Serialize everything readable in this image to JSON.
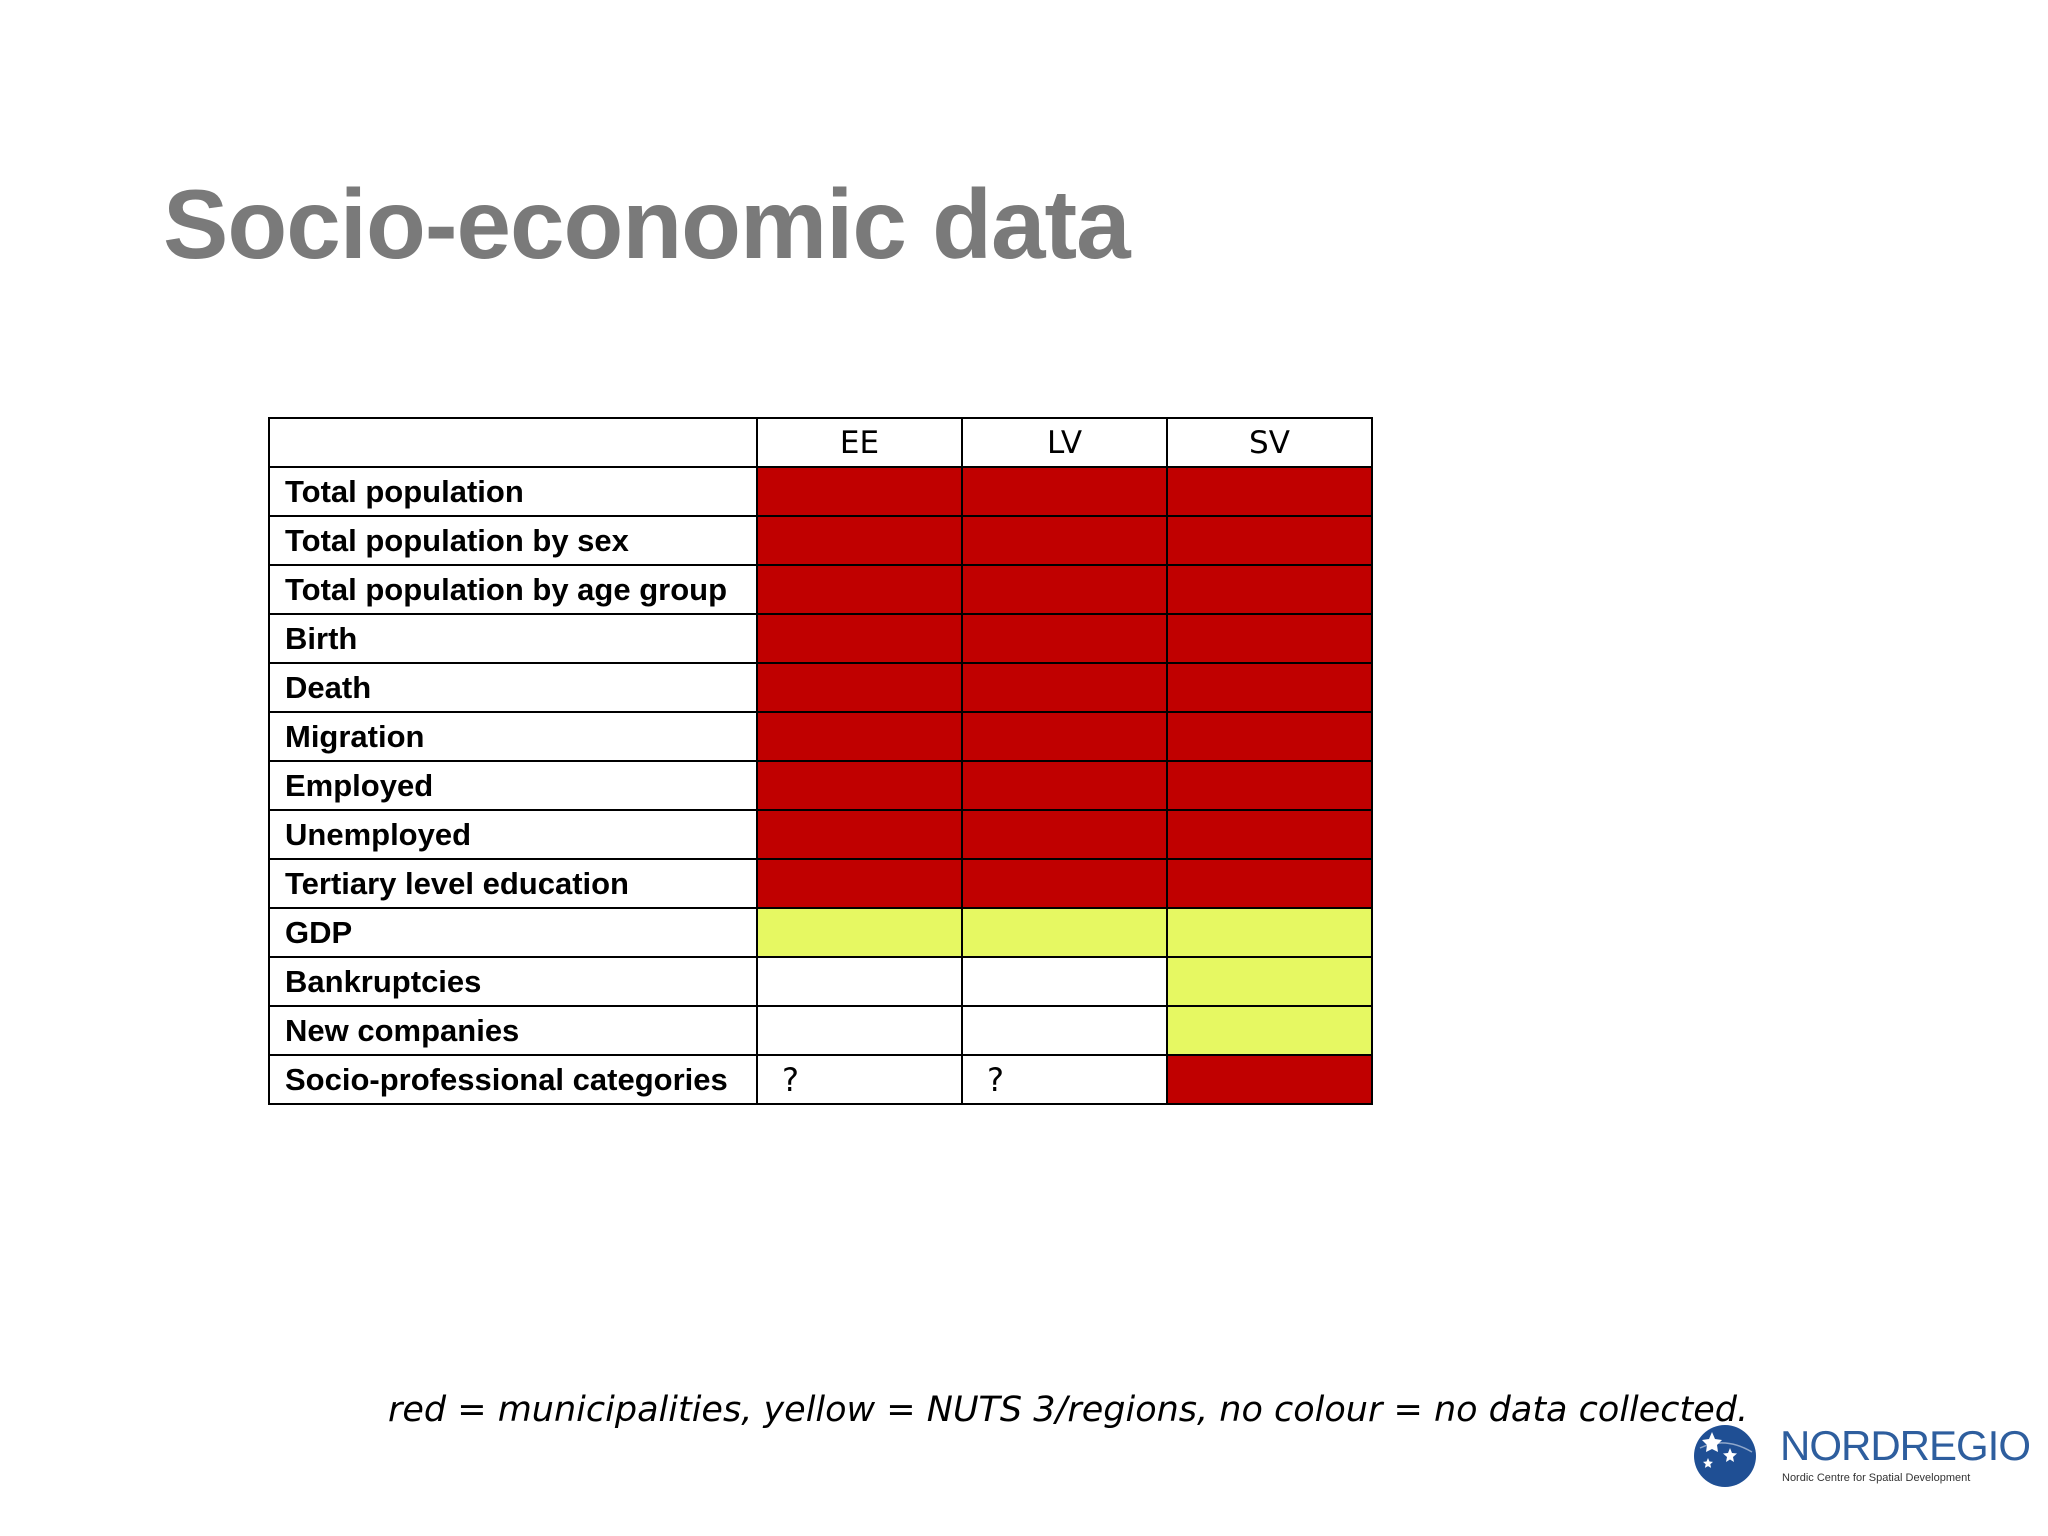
{
  "title": "Socio-economic data",
  "colors": {
    "red": "#c00000",
    "yellow": "#e6f862",
    "none": "#ffffff"
  },
  "table": {
    "columns": [
      "EE",
      "LV",
      "SV"
    ],
    "rows": [
      {
        "label": "Total population",
        "cells": [
          {
            "fill": "red",
            "text": ""
          },
          {
            "fill": "red",
            "text": ""
          },
          {
            "fill": "red",
            "text": ""
          }
        ]
      },
      {
        "label": "Total population by sex",
        "cells": [
          {
            "fill": "red",
            "text": ""
          },
          {
            "fill": "red",
            "text": ""
          },
          {
            "fill": "red",
            "text": ""
          }
        ]
      },
      {
        "label": "Total population by age group",
        "cells": [
          {
            "fill": "red",
            "text": ""
          },
          {
            "fill": "red",
            "text": ""
          },
          {
            "fill": "red",
            "text": ""
          }
        ]
      },
      {
        "label": "Birth",
        "cells": [
          {
            "fill": "red",
            "text": ""
          },
          {
            "fill": "red",
            "text": ""
          },
          {
            "fill": "red",
            "text": ""
          }
        ]
      },
      {
        "label": "Death",
        "cells": [
          {
            "fill": "red",
            "text": ""
          },
          {
            "fill": "red",
            "text": ""
          },
          {
            "fill": "red",
            "text": ""
          }
        ]
      },
      {
        "label": "Migration",
        "cells": [
          {
            "fill": "red",
            "text": ""
          },
          {
            "fill": "red",
            "text": ""
          },
          {
            "fill": "red",
            "text": ""
          }
        ]
      },
      {
        "label": "Employed",
        "cells": [
          {
            "fill": "red",
            "text": ""
          },
          {
            "fill": "red",
            "text": ""
          },
          {
            "fill": "red",
            "text": ""
          }
        ]
      },
      {
        "label": "Unemployed",
        "cells": [
          {
            "fill": "red",
            "text": ""
          },
          {
            "fill": "red",
            "text": ""
          },
          {
            "fill": "red",
            "text": ""
          }
        ]
      },
      {
        "label": "Tertiary level education",
        "cells": [
          {
            "fill": "red",
            "text": ""
          },
          {
            "fill": "red",
            "text": ""
          },
          {
            "fill": "red",
            "text": ""
          }
        ]
      },
      {
        "label": "GDP",
        "cells": [
          {
            "fill": "yellow",
            "text": ""
          },
          {
            "fill": "yellow",
            "text": ""
          },
          {
            "fill": "yellow",
            "text": ""
          }
        ]
      },
      {
        "label": "Bankruptcies",
        "cells": [
          {
            "fill": "none",
            "text": ""
          },
          {
            "fill": "none",
            "text": ""
          },
          {
            "fill": "yellow",
            "text": ""
          }
        ]
      },
      {
        "label": "New companies",
        "cells": [
          {
            "fill": "none",
            "text": ""
          },
          {
            "fill": "none",
            "text": ""
          },
          {
            "fill": "yellow",
            "text": ""
          }
        ]
      },
      {
        "label": "Socio-professional categories",
        "cells": [
          {
            "fill": "none",
            "text": "?"
          },
          {
            "fill": "none",
            "text": "?"
          },
          {
            "fill": "red",
            "text": ""
          }
        ]
      }
    ]
  },
  "legend": "red = municipalities, yellow = NUTS 3/regions, no colour = no data collected.",
  "logo": {
    "name": "NORDREGIO",
    "tagline": "Nordic Centre for Spatial Development",
    "icon": "globe-stars-icon"
  }
}
